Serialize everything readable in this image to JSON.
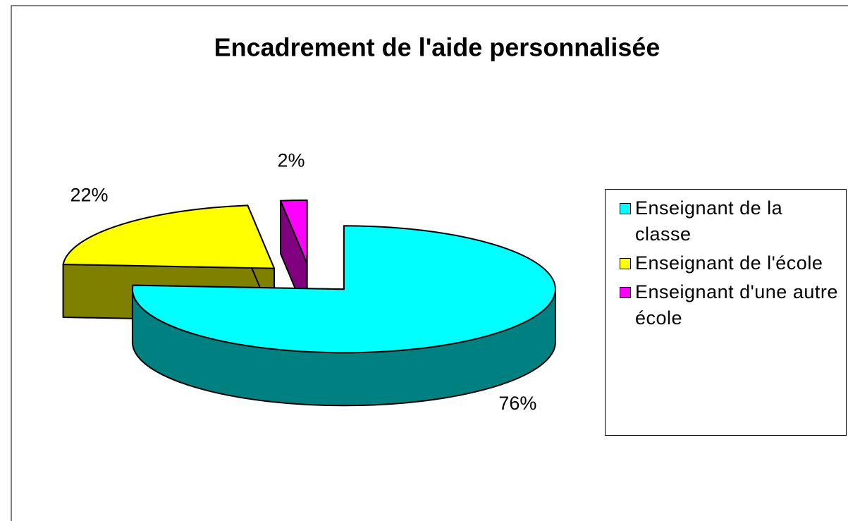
{
  "chart_data": {
    "type": "pie",
    "title": "Encadrement de l'aide personnalisée",
    "categories": [
      "Enseignant de la classe",
      "Enseignant de l'école",
      "Enseignant d'une autre école"
    ],
    "values": [
      76,
      22,
      2
    ],
    "value_labels": [
      "76%",
      "22%",
      "2%"
    ],
    "colors": [
      "#00ffff",
      "#ffff00",
      "#ff00ff"
    ],
    "legend": "right"
  }
}
